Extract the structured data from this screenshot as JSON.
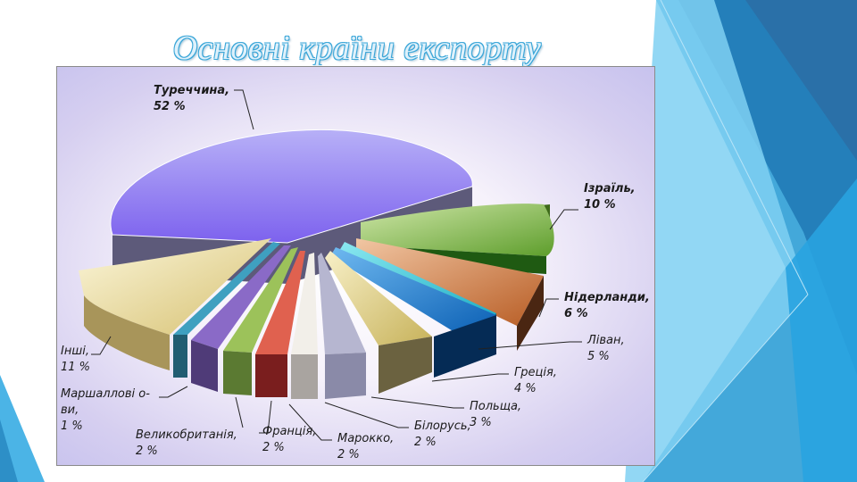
{
  "slide": {
    "title": "Основні країни експорту"
  },
  "chart_data": {
    "type": "pie",
    "slices": [
      {
        "name": "Туреччина",
        "value": 52,
        "label_line1": "Туреччина,",
        "label_line2": "52 %",
        "color": "#9c8ff0"
      },
      {
        "name": "Ізраїль",
        "value": 10,
        "label_line1": "Ізраїль,",
        "label_line2": "10 %",
        "color": "#8fc255"
      },
      {
        "name": "Нідерланди",
        "value": 6,
        "label_line1": "Нідерланди,",
        "label_line2": "6 %",
        "color": "#d98a52"
      },
      {
        "name": "Ліван",
        "value": 5,
        "label_line1": "Ліван,",
        "label_line2": "5 %",
        "color": "#2fc8d8"
      },
      {
        "name": "Греція",
        "value": 4,
        "label_line1": "Греція,",
        "label_line2": "4 %",
        "color": "#1e8fe0"
      },
      {
        "name": "Польща",
        "value": 3,
        "label_line1": "Польща,",
        "label_line2": "3 %",
        "color": "#e8d88a"
      },
      {
        "name": "Білорусь",
        "value": 2,
        "label_line1": "Білорусь,",
        "label_line2": "2 %",
        "color": "#8d8fb5"
      },
      {
        "name": "Марокко",
        "value": 2,
        "label_line1": "Марокко,",
        "label_line2": "2 %",
        "color": "#f2efe9"
      },
      {
        "name": "Франція",
        "value": 2,
        "label_line1": "Франція,",
        "label_line2": "2 %",
        "color": "#f4c9a0"
      },
      {
        "name": "Великобританія",
        "value": 2,
        "label_line1": "Великобританія,",
        "label_line2": "2 %",
        "color": "#cc5050"
      },
      {
        "name": "Маршаллові острови",
        "value": 1,
        "label_line1": "Маршаллові о-",
        "label_line2": "ви,",
        "label_line3": "1 %",
        "color": "#9cc25a"
      },
      {
        "name": "Інші",
        "value": 11,
        "label_line1": "Інші,",
        "label_line2": "11 %",
        "color": "#e6d37e"
      }
    ],
    "extra_slices_colors": [
      "#7a5fb0",
      "#3fa0c0"
    ],
    "legend": "none",
    "title": ""
  }
}
